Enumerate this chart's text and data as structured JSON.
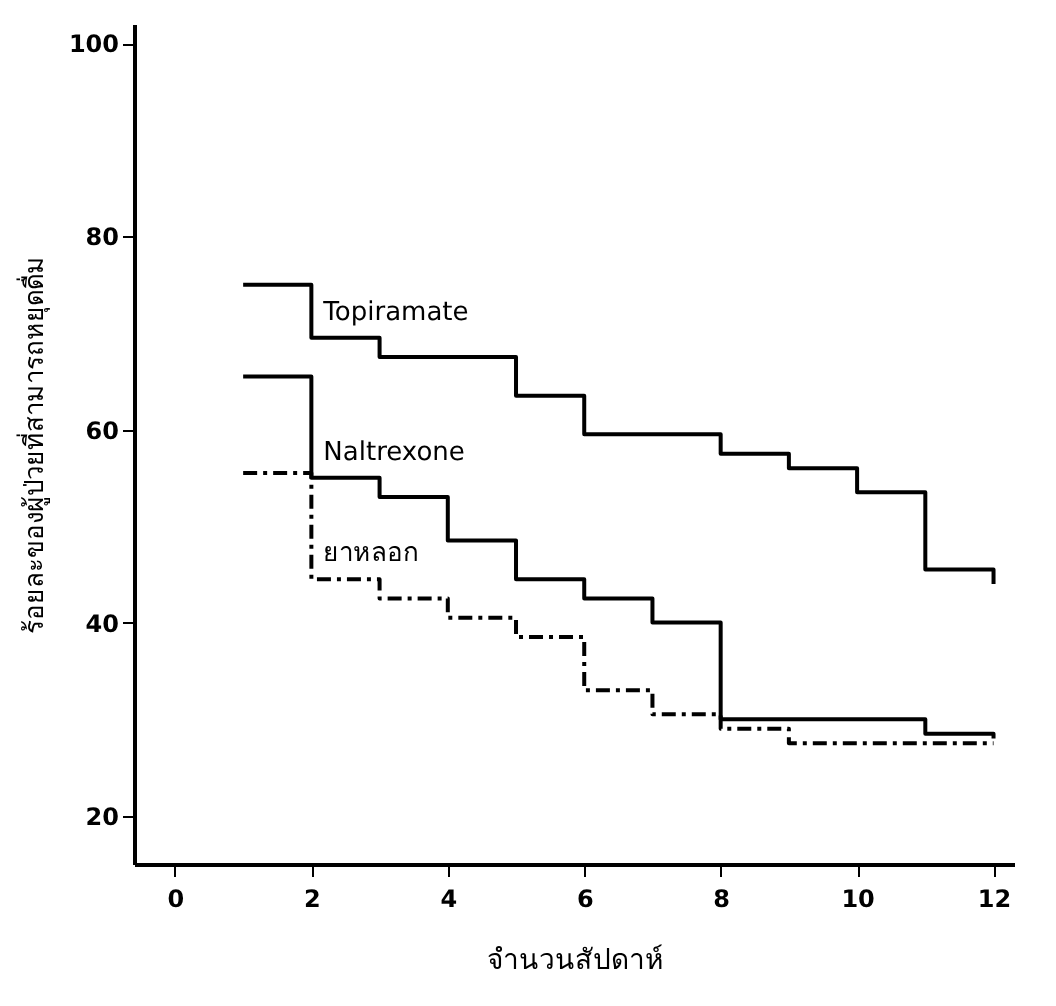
{
  "chart_data": {
    "type": "step",
    "xlabel": "จำนวนสัปดาห์",
    "ylabel": "ร้อยละของผู้ป่วยที่สามารถหยุดดื่ม",
    "xlim": [
      -0.6,
      12.3
    ],
    "xticks": [
      0,
      2,
      4,
      6,
      8,
      10,
      12
    ],
    "ylim": [
      15,
      102
    ],
    "yticks": [
      20,
      40,
      60,
      80,
      100
    ],
    "grid": false,
    "series": [
      {
        "name": "Topiramate",
        "color": "#000000",
        "line_style": "solid",
        "x": [
          1,
          2,
          3,
          5,
          6,
          8,
          9,
          10,
          11,
          12
        ],
        "values": [
          75,
          69.5,
          67.5,
          63.5,
          59.5,
          57.5,
          56,
          53.5,
          45.5,
          44
        ]
      },
      {
        "name": "Naltrexone",
        "color": "#000000",
        "line_style": "solid",
        "x": [
          1,
          2,
          3,
          4,
          5,
          6,
          7,
          8,
          11,
          12
        ],
        "values": [
          65.5,
          55,
          53,
          48.5,
          44.5,
          42.5,
          40,
          30,
          28.5,
          28
        ]
      },
      {
        "name": "ยาหลอก",
        "color": "#000000",
        "line_style": "dashed",
        "x": [
          1,
          2,
          3,
          4,
          5,
          6,
          7,
          8,
          9,
          12
        ],
        "values": [
          55.5,
          44.5,
          42.5,
          40.5,
          38.5,
          33,
          30.5,
          29,
          27.5,
          27.5
        ]
      }
    ]
  }
}
